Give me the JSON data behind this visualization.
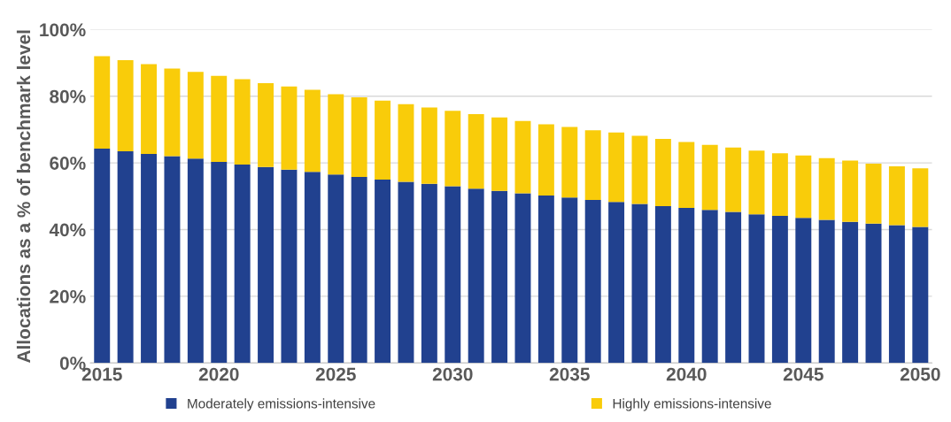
{
  "chart_data": {
    "type": "bar",
    "stacked": true,
    "ylabel": "Allocations as a % of benchmark level",
    "categories": [
      "2015",
      null,
      null,
      null,
      null,
      "2020",
      null,
      null,
      null,
      null,
      "2025",
      null,
      null,
      null,
      null,
      "2030",
      null,
      null,
      null,
      null,
      "2035",
      null,
      null,
      null,
      null,
      "2040",
      null,
      null,
      null,
      null,
      "2045",
      null,
      null,
      null,
      null,
      "2050"
    ],
    "series": [
      {
        "name": "Moderately emissions-intensive",
        "color": "#21418f",
        "values": [
          64.3,
          63.5,
          62.7,
          62.0,
          61.3,
          60.3,
          59.5,
          58.8,
          58.0,
          57.3,
          56.5,
          55.8,
          55.0,
          54.3,
          53.7,
          53.0,
          52.3,
          51.6,
          50.9,
          50.2,
          49.6,
          48.9,
          48.3,
          47.7,
          47.0,
          46.5,
          45.9,
          45.3,
          44.6,
          44.1,
          43.5,
          42.9,
          42.3,
          41.8,
          41.3,
          40.8
        ]
      },
      {
        "name": "Highly emissions-intensive",
        "color": "#f9cc0a",
        "values": [
          27.7,
          27.3,
          26.9,
          26.3,
          26.0,
          25.8,
          25.6,
          25.1,
          24.9,
          24.6,
          24.1,
          23.9,
          23.7,
          23.3,
          22.9,
          22.6,
          22.3,
          22.0,
          21.7,
          21.4,
          21.2,
          20.9,
          20.8,
          20.4,
          20.2,
          19.8,
          19.5,
          19.3,
          19.1,
          18.8,
          18.7,
          18.5,
          18.4,
          18.0,
          17.7,
          17.6
        ]
      }
    ],
    "ylim": [
      0,
      100
    ],
    "yticks": [
      {
        "value": 0,
        "label": "0%"
      },
      {
        "value": 20,
        "label": "20%"
      },
      {
        "value": 40,
        "label": "40%"
      },
      {
        "value": 60,
        "label": "60%"
      },
      {
        "value": 80,
        "label": "80%"
      },
      {
        "value": 100,
        "label": "100%"
      }
    ],
    "grid": "y",
    "legend": "bottom"
  }
}
